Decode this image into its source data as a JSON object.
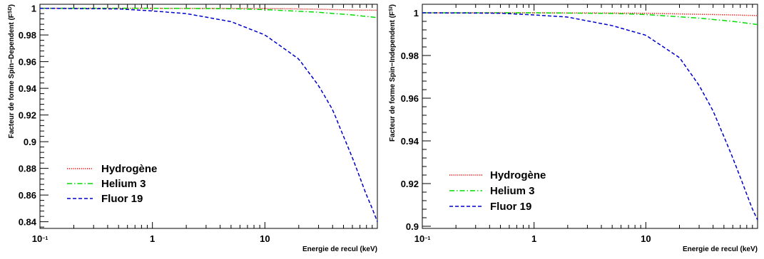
{
  "chart_data": [
    {
      "type": "line",
      "ylabel": "Facteur de forme Spin−Dependent (F",
      "ylabel_sup": "SD",
      "ylabel_close": ")",
      "xlabel": "Energie de recul (keV)",
      "xscale": "log",
      "xlim": [
        0.1,
        100
      ],
      "ylim": [
        0.835,
        1.003
      ],
      "x_ticks": [
        {
          "value": 0.1,
          "label": "10",
          "sup": "−1"
        },
        {
          "value": 1,
          "label": "1",
          "sup": ""
        },
        {
          "value": 10,
          "label": "10",
          "sup": ""
        }
      ],
      "y_ticks": [
        {
          "value": 0.84,
          "label": "0.84"
        },
        {
          "value": 0.86,
          "label": "0.86"
        },
        {
          "value": 0.88,
          "label": "0.88"
        },
        {
          "value": 0.9,
          "label": "0.9"
        },
        {
          "value": 0.92,
          "label": "0.92"
        },
        {
          "value": 0.94,
          "label": "0.94"
        },
        {
          "value": 0.96,
          "label": "0.96"
        },
        {
          "value": 0.98,
          "label": "0.98"
        },
        {
          "value": 1,
          "label": "1"
        }
      ],
      "grid": false,
      "legend_position": "bottom-left",
      "series": [
        {
          "name": "Hydrogène",
          "color": "#ff0000",
          "dash": "dotted",
          "x": [
            0.1,
            1,
            10,
            30,
            60,
            100
          ],
          "y": [
            1.0,
            1.0,
            0.9998,
            0.9993,
            0.9987,
            0.9985
          ]
        },
        {
          "name": "Helium 3",
          "color": "#00dd00",
          "dash": "dashdot",
          "x": [
            0.1,
            1,
            5,
            10,
            30,
            60,
            100
          ],
          "y": [
            1.0,
            1.0,
            0.9997,
            0.999,
            0.997,
            0.995,
            0.993
          ]
        },
        {
          "name": "Fluor 19",
          "color": "#0000cc",
          "dash": "dashed",
          "x": [
            0.1,
            0.5,
            1,
            2,
            5,
            10,
            20,
            30,
            40,
            50,
            60,
            70,
            80,
            90,
            100
          ],
          "y": [
            1.0,
            0.9995,
            0.998,
            0.996,
            0.99,
            0.98,
            0.962,
            0.942,
            0.924,
            0.904,
            0.888,
            0.873,
            0.86,
            0.85,
            0.84
          ]
        }
      ]
    },
    {
      "type": "line",
      "ylabel": "Facteur de forme Spin−Independent (F",
      "ylabel_sup": "SI",
      "ylabel_close": ")",
      "xlabel": "Energie de recul (keV)",
      "xscale": "log",
      "xlim": [
        0.1,
        100
      ],
      "ylim": [
        0.899,
        1.004
      ],
      "x_ticks": [
        {
          "value": 0.1,
          "label": "10",
          "sup": "−1"
        },
        {
          "value": 1,
          "label": "1",
          "sup": ""
        },
        {
          "value": 10,
          "label": "10",
          "sup": ""
        }
      ],
      "y_ticks": [
        {
          "value": 0.9,
          "label": "0.9"
        },
        {
          "value": 0.92,
          "label": "0.92"
        },
        {
          "value": 0.94,
          "label": "0.94"
        },
        {
          "value": 0.96,
          "label": "0.96"
        },
        {
          "value": 0.98,
          "label": "0.98"
        },
        {
          "value": 1,
          "label": "1"
        }
      ],
      "grid": false,
      "legend_position": "bottom-left",
      "series": [
        {
          "name": "Hydrogène",
          "color": "#ff0000",
          "dash": "dotted",
          "x": [
            0.1,
            1,
            10,
            30,
            60,
            100
          ],
          "y": [
            1.0,
            1.0,
            0.9998,
            0.9993,
            0.999,
            0.9987
          ]
        },
        {
          "name": "Helium 3",
          "color": "#00dd00",
          "dash": "dashdot",
          "x": [
            0.1,
            1,
            5,
            10,
            30,
            60,
            100
          ],
          "y": [
            1.0,
            1.0,
            0.9997,
            0.9992,
            0.9975,
            0.996,
            0.9945
          ]
        },
        {
          "name": "Fluor 19",
          "color": "#0000cc",
          "dash": "dashed",
          "x": [
            0.1,
            0.5,
            1,
            2,
            5,
            10,
            20,
            30,
            40,
            50,
            60,
            70,
            80,
            90,
            100
          ],
          "y": [
            1.0,
            0.9998,
            0.999,
            0.998,
            0.994,
            0.9895,
            0.979,
            0.966,
            0.954,
            0.942,
            0.932,
            0.923,
            0.915,
            0.908,
            0.903
          ]
        }
      ]
    }
  ]
}
